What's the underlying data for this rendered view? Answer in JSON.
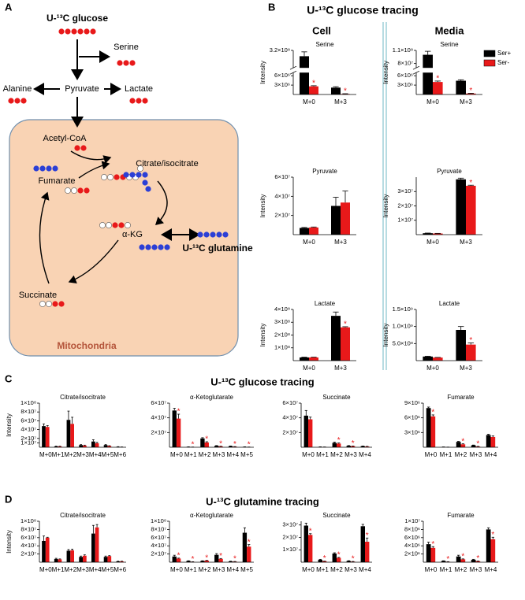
{
  "panel_labels": [
    "A",
    "B",
    "C",
    "D"
  ],
  "diagram": {
    "glucose": "U-¹³C glucose",
    "serine": "Serine",
    "alanine": "Alanine",
    "pyruvate": "Pyruvate",
    "lactate": "Lactate",
    "acetyl_coa": "Acetyl-CoA",
    "citrate": "Citrate/isocitrate",
    "fumarate": "Fumarate",
    "akg": "α-KG",
    "succinate": "Succinate",
    "glutamine": "U-¹³C glutamine",
    "compartment": "Mitochondria"
  },
  "sections": {
    "b_title": "U-¹³C glucose tracing",
    "b_cell": "Cell",
    "b_media": "Media",
    "c_title": "U-¹³C glucose tracing",
    "d_title": "U-¹³C glutamine tracing"
  },
  "chart_data": [
    {
      "type": "bar",
      "title": "Serine",
      "y_label": "Intensity",
      "categories": [
        "M+0",
        "M+3"
      ],
      "series": [
        {
          "color": "#000000",
          "values": [
            300000000.0,
            2200000.0
          ],
          "errors": [
            15000000.0,
            300000.0
          ]
        },
        {
          "color": "#e8191a",
          "values": [
            2600000.0,
            150000.0
          ],
          "errors": [
            200000.0,
            100000.0
          ],
          "stars": [
            "*",
            "*"
          ]
        }
      ],
      "ylim": [
        0,
        320000000.0
      ],
      "ybreak": [
        7000000.0,
        260000000.0
      ],
      "yticks": [
        {
          "value": 3000000.0,
          "label": "3×10⁶"
        },
        {
          "value": 6000000.0,
          "label": "6×10⁶"
        },
        {
          "value": 320000000.0,
          "label": "3.2×10⁸"
        }
      ]
    },
    {
      "type": "bar",
      "title": "Serine",
      "y_label": "Intensity",
      "legend": "upper right",
      "categories": [
        "M+0",
        "M+3"
      ],
      "series": [
        {
          "name": "Ser+",
          "color": "#000000",
          "values": [
            100000000.0,
            4400000.0
          ],
          "errors": [
            8000000.0,
            300000.0
          ]
        },
        {
          "name": "Ser-",
          "color": "#e8191a",
          "values": [
            4000000.0,
            300000.0
          ],
          "errors": [
            300000.0,
            100000.0
          ],
          "stars": [
            "*",
            "*"
          ]
        }
      ],
      "ylim": [
        0,
        110000000.0
      ],
      "ybreak": [
        7000000.0,
        70000000.0
      ],
      "yticks": [
        {
          "value": 3000000.0,
          "label": "3×10⁶"
        },
        {
          "value": 6000000.0,
          "label": "6×10⁶"
        },
        {
          "value": 80000000.0,
          "label": "8×10⁷"
        },
        {
          "value": 110000000.0,
          "label": "1.1×10⁸"
        }
      ]
    },
    {
      "type": "bar",
      "title": "Pyruvate",
      "y_label": "Intensity",
      "categories": [
        "M+0",
        "M+3"
      ],
      "series": [
        {
          "color": "#000000",
          "values": [
            7000000.0,
            30000000.0
          ],
          "errors": [
            500000.0,
            9000000.0
          ]
        },
        {
          "color": "#e8191a",
          "values": [
            7500000.0,
            33500000.0
          ],
          "errors": [
            500000.0,
            12000000.0
          ]
        }
      ],
      "ylim": [
        0,
        60000000.0
      ],
      "yticks": [
        {
          "value": 20000000.0,
          "label": "2×10⁷"
        },
        {
          "value": 40000000.0,
          "label": "4×10⁷"
        },
        {
          "value": 60000000.0,
          "label": "6×10⁷"
        }
      ]
    },
    {
      "type": "bar",
      "title": "Pyruvate",
      "y_label": "Intensity",
      "categories": [
        "M+0",
        "M+3"
      ],
      "series": [
        {
          "color": "#000000",
          "values": [
            1000000.0,
            38500000.0
          ],
          "errors": [
            100000.0,
            800000.0
          ]
        },
        {
          "color": "#e8191a",
          "values": [
            800000.0,
            34000000.0
          ],
          "errors": [
            100000.0,
            400000.0
          ],
          "stars": [
            null,
            "*"
          ]
        }
      ],
      "ylim": [
        0,
        40000000.0
      ],
      "yticks": [
        {
          "value": 10000000.0,
          "label": "1×10⁷"
        },
        {
          "value": 20000000.0,
          "label": "2×10⁷"
        },
        {
          "value": 30000000.0,
          "label": "3×10⁷"
        }
      ]
    },
    {
      "type": "bar",
      "title": "Lactate",
      "y_label": "Intensity",
      "categories": [
        "M+0",
        "M+3"
      ],
      "series": [
        {
          "color": "#000000",
          "values": [
            25000000.0,
            350000000.0
          ],
          "errors": [
            2000000.0,
            30000000.0
          ]
        },
        {
          "color": "#e8191a",
          "values": [
            25000000.0,
            260000000.0
          ],
          "errors": [
            2000000.0,
            5000000.0
          ],
          "stars": [
            null,
            "*"
          ]
        }
      ],
      "ylim": [
        0,
        400000000.0
      ],
      "yticks": [
        {
          "value": 100000000.0,
          "label": "1×10⁸"
        },
        {
          "value": 200000000.0,
          "label": "2×10⁸"
        },
        {
          "value": 300000000.0,
          "label": "3×10⁸"
        },
        {
          "value": 400000000.0,
          "label": "4×10⁸"
        }
      ]
    },
    {
      "type": "bar",
      "title": "Lactate",
      "y_label": "Intensity",
      "categories": [
        "M+0",
        "M+3"
      ],
      "series": [
        {
          "color": "#000000",
          "values": [
            120000000.0,
            900000000.0
          ],
          "errors": [
            10000000.0,
            100000000.0
          ]
        },
        {
          "color": "#e8191a",
          "values": [
            90000000.0,
            470000000.0
          ],
          "errors": [
            5000000.0,
            50000000.0
          ],
          "stars": [
            null,
            "*"
          ]
        }
      ],
      "ylim": [
        0,
        1500000000.0
      ],
      "yticks": [
        {
          "value": 500000000.0,
          "label": "5.0×10⁸"
        },
        {
          "value": 1000000000.0,
          "label": "1.0×10⁹"
        },
        {
          "value": 1500000000.0,
          "label": "1.5×10⁹"
        }
      ]
    },
    {
      "type": "bar",
      "title": "Citrate/isocitrate",
      "y_label": "Intensity",
      "categories": [
        "M+0",
        "M+1",
        "M+2",
        "M+3",
        "M+4",
        "M+5",
        "M+6"
      ],
      "series": [
        {
          "color": "#000000",
          "values": [
            48000000.0,
            2000000.0,
            62000000.0,
            5000000.0,
            13000000.0,
            5000000.0,
            1000000.0
          ],
          "errors": [
            5000000.0,
            500000.0,
            20000000.0,
            1000000.0,
            4000000.0,
            1000000.0,
            300000.0
          ]
        },
        {
          "color": "#e8191a",
          "values": [
            46000000.0,
            2000000.0,
            53000000.0,
            4000000.0,
            9000000.0,
            3000000.0,
            500000.0
          ],
          "errors": [
            3000000.0,
            300000.0,
            15000000.0,
            800000.0,
            2000000.0,
            500000.0,
            200000.0
          ]
        }
      ],
      "ylim": [
        0,
        100000000.0
      ],
      "yticks": [
        {
          "value": 10000000.0,
          "label": "1×10⁷"
        },
        {
          "value": 20000000.0,
          "label": "2×10⁷"
        },
        {
          "value": 40000000.0,
          "label": "4×10⁷"
        },
        {
          "value": 60000000.0,
          "label": "6×10⁷"
        },
        {
          "value": 80000000.0,
          "label": "8×10⁷"
        },
        {
          "value": 100000000.0,
          "label": "1×10⁸"
        }
      ]
    },
    {
      "type": "bar",
      "title": "α-Ketoglutarate",
      "categories": [
        "M+0",
        "M+1",
        "M+2",
        "M+3",
        "M+4",
        "M+5"
      ],
      "series": [
        {
          "color": "#000000",
          "values": [
            50000000.0,
            500000.0,
            12000000.0,
            2000000.0,
            1500000.0,
            500000.0
          ],
          "errors": [
            3000000.0,
            100000.0,
            1000000.0,
            300000.0,
            200000.0,
            100000.0
          ]
        },
        {
          "color": "#e8191a",
          "values": [
            39000000.0,
            200000.0,
            6500000.0,
            1200000.0,
            800000.0,
            200000.0
          ],
          "errors": [
            6000000.0,
            100000.0,
            1000000.0,
            200000.0,
            100000.0,
            100000.0
          ],
          "stars": [
            "*",
            "*",
            "*",
            "*",
            "*",
            "*"
          ]
        }
      ],
      "ylim": [
        0,
        60000000.0
      ],
      "yticks": [
        {
          "value": 20000000.0,
          "label": "2×10⁷"
        },
        {
          "value": 40000000.0,
          "label": "4×10⁷"
        },
        {
          "value": 60000000.0,
          "label": "6×10⁷"
        }
      ]
    },
    {
      "type": "bar",
      "title": "Succinate",
      "categories": [
        "M+0",
        "M+1",
        "M+2",
        "M+3",
        "M+4"
      ],
      "series": [
        {
          "color": "#000000",
          "values": [
            43000000.0,
            500000.0,
            6000000.0,
            2000000.0,
            1500000.0
          ],
          "errors": [
            7000000.0,
            100000.0,
            1000000.0,
            300000.0,
            200000.0
          ]
        },
        {
          "color": "#e8191a",
          "values": [
            38000000.0,
            300000.0,
            5000000.0,
            1500000.0,
            1000000.0
          ],
          "errors": [
            3000000.0,
            100000.0,
            800000.0,
            200000.0,
            200000.0
          ],
          "stars": [
            null,
            null,
            "*",
            "*",
            null
          ]
        }
      ],
      "ylim": [
        0,
        60000000.0
      ],
      "yticks": [
        {
          "value": 20000000.0,
          "label": "2×10⁷"
        },
        {
          "value": 40000000.0,
          "label": "4×10⁷"
        },
        {
          "value": 60000000.0,
          "label": "6×10⁷"
        }
      ]
    },
    {
      "type": "bar",
      "title": "Fumarate",
      "categories": [
        "M+0",
        "M+1",
        "M+2",
        "M+3",
        "M+4"
      ],
      "series": [
        {
          "color": "#000000",
          "values": [
            8000000.0,
            50000.0,
            1100000.0,
            400000.0,
            2500000.0
          ],
          "errors": [
            200000.0,
            20000.0,
            100000.0,
            50000.0,
            150000.0
          ]
        },
        {
          "color": "#e8191a",
          "values": [
            6300000.0,
            20000.0,
            600000.0,
            150000.0,
            2100000.0
          ],
          "errors": [
            300000.0,
            10000.0,
            100000.0,
            30000.0,
            200000.0
          ],
          "stars": [
            "*",
            null,
            "*",
            "*",
            null
          ]
        }
      ],
      "ylim": [
        0,
        9000000.0
      ],
      "yticks": [
        {
          "value": 3000000.0,
          "label": "3×10⁶"
        },
        {
          "value": 6000000.0,
          "label": "6×10⁶"
        },
        {
          "value": 9000000.0,
          "label": "9×10⁶"
        }
      ]
    },
    {
      "type": "bar",
      "title": "Citrate/isocitrate",
      "y_label": "Intensity",
      "categories": [
        "M+0",
        "M+1",
        "M+2",
        "M+3",
        "M+4",
        "M+5",
        "M+6"
      ],
      "series": [
        {
          "color": "#000000",
          "values": [
            52000000.0,
            8000000.0,
            28000000.0,
            13000000.0,
            70000000.0,
            13000000.0,
            2000000.0
          ],
          "errors": [
            12000000.0,
            1500000.0,
            3000000.0,
            2000000.0,
            20000000.0,
            2000000.0,
            500000.0
          ]
        },
        {
          "color": "#e8191a",
          "values": [
            60000000.0,
            7000000.0,
            29000000.0,
            16000000.0,
            85000000.0,
            15000000.0,
            2000000.0
          ],
          "errors": [
            1000000.0,
            1000000.0,
            3000000.0,
            2000000.0,
            7000000.0,
            1000000.0,
            500000.0
          ]
        }
      ],
      "ylim": [
        0,
        100000000.0
      ],
      "yticks": [
        {
          "value": 20000000.0,
          "label": "2×10⁷"
        },
        {
          "value": 40000000.0,
          "label": "4×10⁷"
        },
        {
          "value": 60000000.0,
          "label": "6×10⁷"
        },
        {
          "value": 80000000.0,
          "label": "8×10⁷"
        },
        {
          "value": 100000000.0,
          "label": "1×10⁸"
        }
      ]
    },
    {
      "type": "bar",
      "title": "α-Ketoglutarate",
      "categories": [
        "M+0",
        "M+1",
        "M+2",
        "M+3",
        "M+4",
        "M+5"
      ],
      "series": [
        {
          "color": "#000000",
          "values": [
            14000000.0,
            3000000.0,
            3000000.0,
            18000000.0,
            2000000.0,
            72000000.0
          ],
          "errors": [
            3000000.0,
            500000.0,
            500000.0,
            3000000.0,
            500000.0,
            12000000.0
          ]
        },
        {
          "color": "#e8191a",
          "values": [
            9000000.0,
            1000000.0,
            4000000.0,
            8000000.0,
            1500000.0,
            38000000.0
          ],
          "errors": [
            1000000.0,
            200000.0,
            500000.0,
            1000000.0,
            300000.0,
            5000000.0
          ],
          "stars": [
            "*",
            "*",
            "*",
            "*",
            "*",
            "*"
          ]
        }
      ],
      "ylim": [
        0,
        100000000.0
      ],
      "yticks": [
        {
          "value": 20000000.0,
          "label": "2×10⁷"
        },
        {
          "value": 40000000.0,
          "label": "4×10⁷"
        },
        {
          "value": 60000000.0,
          "label": "6×10⁷"
        },
        {
          "value": 80000000.0,
          "label": "8×10⁷"
        },
        {
          "value": 100000000.0,
          "label": "1×10⁸"
        }
      ]
    },
    {
      "type": "bar",
      "title": "Succinate",
      "categories": [
        "M+0",
        "M+1",
        "M+2",
        "M+3",
        "M+4"
      ],
      "series": [
        {
          "color": "#000000",
          "values": [
            29500000.0,
            2000000.0,
            7000000.0,
            1000000.0,
            29000000.0
          ],
          "errors": [
            2000000.0,
            300000.0,
            600000.0,
            200000.0,
            1500000.0
          ]
        },
        {
          "color": "#e8191a",
          "values": [
            22000000.0,
            800000.0,
            3500000.0,
            500000.0,
            16500000.0
          ],
          "errors": [
            1000000.0,
            100000.0,
            400000.0,
            100000.0,
            3000000.0
          ],
          "stars": [
            "*",
            "*",
            "*",
            "*",
            "*"
          ]
        }
      ],
      "ylim": [
        0,
        33000000.0
      ],
      "yticks": [
        {
          "value": 10000000.0,
          "label": "1×10⁷"
        },
        {
          "value": 20000000.0,
          "label": "2×10⁷"
        },
        {
          "value": 30000000.0,
          "label": "3×10⁷"
        }
      ]
    },
    {
      "type": "bar",
      "title": "Fumarate",
      "categories": [
        "M+0",
        "M+1",
        "M+2",
        "M+3",
        "M+4"
      ],
      "series": [
        {
          "color": "#000000",
          "values": [
            4400000.0,
            300000.0,
            1400000.0,
            600000.0,
            8000000.0
          ],
          "errors": [
            500000.0,
            50000.0,
            300000.0,
            100000.0,
            400000.0
          ]
        },
        {
          "color": "#e8191a",
          "values": [
            3500000.0,
            100000.0,
            700000.0,
            250000.0,
            5600000.0
          ],
          "errors": [
            300000.0,
            30000.0,
            100000.0,
            50000.0,
            500000.0
          ],
          "stars": [
            "*",
            "*",
            "*",
            "*",
            "*"
          ]
        }
      ],
      "ylim": [
        0,
        10000000.0
      ],
      "yticks": [
        {
          "value": 2000000.0,
          "label": "2×10⁶"
        },
        {
          "value": 4000000.0,
          "label": "4×10⁶"
        },
        {
          "value": 6000000.0,
          "label": "6×10⁶"
        },
        {
          "value": 8000000.0,
          "label": "8×10⁶"
        },
        {
          "value": 10000000.0,
          "label": "1×10⁷"
        }
      ]
    }
  ]
}
